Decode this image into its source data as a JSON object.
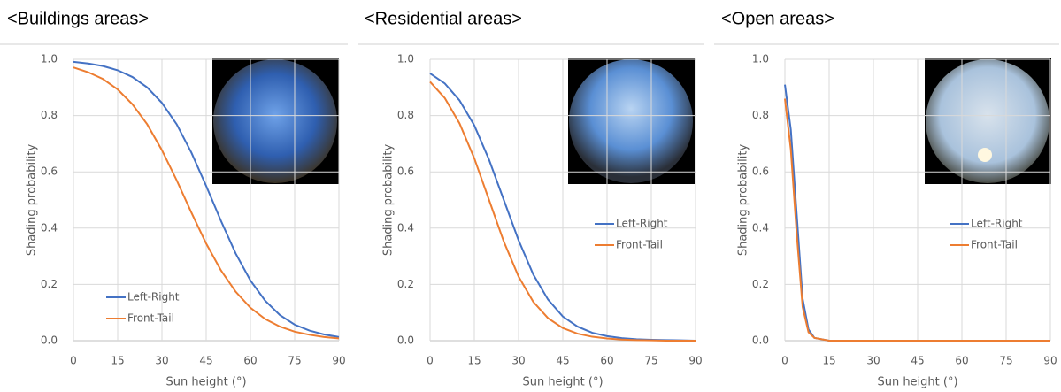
{
  "chart_data": [
    {
      "type": "line",
      "title": "<Buildings areas>",
      "xlabel": "Sun height (°)",
      "ylabel": "Shading probability",
      "x": [
        0,
        5,
        10,
        15,
        20,
        25,
        30,
        35,
        40,
        45,
        50,
        55,
        60,
        65,
        70,
        75,
        80,
        85,
        90
      ],
      "series": [
        {
          "name": "Left-Right",
          "color": "#4472c4",
          "values": [
            0.991,
            0.985,
            0.976,
            0.961,
            0.937,
            0.9,
            0.845,
            0.769,
            0.668,
            0.55,
            0.426,
            0.31,
            0.214,
            0.142,
            0.091,
            0.057,
            0.036,
            0.022,
            0.013
          ]
        },
        {
          "name": "Front-Tail",
          "color": "#ed7d31",
          "values": [
            0.971,
            0.954,
            0.93,
            0.893,
            0.84,
            0.769,
            0.677,
            0.57,
            0.455,
            0.345,
            0.25,
            0.174,
            0.117,
            0.077,
            0.05,
            0.032,
            0.021,
            0.013,
            0.008
          ]
        }
      ],
      "xlim": [
        0,
        90
      ],
      "xticks": [
        0,
        15,
        30,
        45,
        60,
        75,
        90
      ],
      "ylim": [
        0,
        1
      ],
      "yticks": [
        {
          "value": 0,
          "label": "0.0"
        },
        {
          "value": 0.2,
          "label": "0.2"
        },
        {
          "value": 0.4,
          "label": "0.4"
        },
        {
          "value": 0.6,
          "label": "0.6"
        },
        {
          "value": 0.8,
          "label": "0.8"
        },
        {
          "value": 1,
          "label": "1.0"
        }
      ],
      "grid": true,
      "legend": "lower left"
    },
    {
      "type": "line",
      "title": "<Residential areas>",
      "xlabel": "Sun height (°)",
      "ylabel": "Shading probability",
      "x": [
        0,
        5,
        10,
        15,
        20,
        25,
        30,
        35,
        40,
        45,
        50,
        55,
        60,
        65,
        70,
        75,
        80,
        85,
        90
      ],
      "series": [
        {
          "name": "Left-Right",
          "color": "#4472c4",
          "values": [
            0.95,
            0.914,
            0.854,
            0.765,
            0.643,
            0.5,
            0.357,
            0.235,
            0.146,
            0.086,
            0.05,
            0.028,
            0.016,
            0.009,
            0.005,
            0.003,
            0.002,
            0.001,
            0
          ]
        },
        {
          "name": "Front-Tail",
          "color": "#ed7d31",
          "values": [
            0.92,
            0.862,
            0.772,
            0.648,
            0.5,
            0.352,
            0.228,
            0.138,
            0.08,
            0.045,
            0.025,
            0.014,
            0.008,
            0.004,
            0.002,
            0.001,
            0,
            0,
            0
          ]
        }
      ],
      "xlim": [
        0,
        90
      ],
      "xticks": [
        0,
        15,
        30,
        45,
        60,
        75,
        90
      ],
      "ylim": [
        0,
        1
      ],
      "yticks": [
        {
          "value": 0,
          "label": "0.0"
        },
        {
          "value": 0.2,
          "label": "0.2"
        },
        {
          "value": 0.4,
          "label": "0.4"
        },
        {
          "value": 0.6,
          "label": "0.6"
        },
        {
          "value": 0.8,
          "label": "0.8"
        },
        {
          "value": 1,
          "label": "1.0"
        }
      ],
      "grid": true,
      "legend": "center right"
    },
    {
      "type": "line",
      "title": "<Open areas>",
      "xlabel": "Sun height (°)",
      "ylabel": "Shading probability",
      "x": [
        0,
        2,
        4,
        6,
        8,
        10,
        15,
        20,
        25,
        30,
        35,
        40,
        45,
        50,
        55,
        60,
        65,
        70,
        75,
        80,
        85,
        90
      ],
      "series": [
        {
          "name": "Left-Right",
          "color": "#4472c4",
          "values": [
            0.91,
            0.75,
            0.45,
            0.15,
            0.04,
            0.01,
            0,
            0,
            0,
            0,
            0,
            0,
            0,
            0,
            0,
            0,
            0,
            0,
            0,
            0,
            0,
            0
          ]
        },
        {
          "name": "Front-Tail",
          "color": "#ed7d31",
          "values": [
            0.86,
            0.68,
            0.38,
            0.12,
            0.03,
            0.01,
            0,
            0,
            0,
            0,
            0,
            0,
            0,
            0,
            0,
            0,
            0,
            0,
            0,
            0,
            0,
            0
          ]
        }
      ],
      "xlim": [
        0,
        90
      ],
      "xticks": [
        0,
        15,
        30,
        45,
        60,
        75,
        90
      ],
      "ylim": [
        0,
        1
      ],
      "yticks": [
        {
          "value": 0,
          "label": "0.0"
        },
        {
          "value": 0.2,
          "label": "0.2"
        },
        {
          "value": 0.4,
          "label": "0.4"
        },
        {
          "value": 0.6,
          "label": "0.6"
        },
        {
          "value": 0.8,
          "label": "0.8"
        },
        {
          "value": 1,
          "label": "1.0"
        }
      ],
      "grid": true,
      "legend": "center right"
    }
  ]
}
